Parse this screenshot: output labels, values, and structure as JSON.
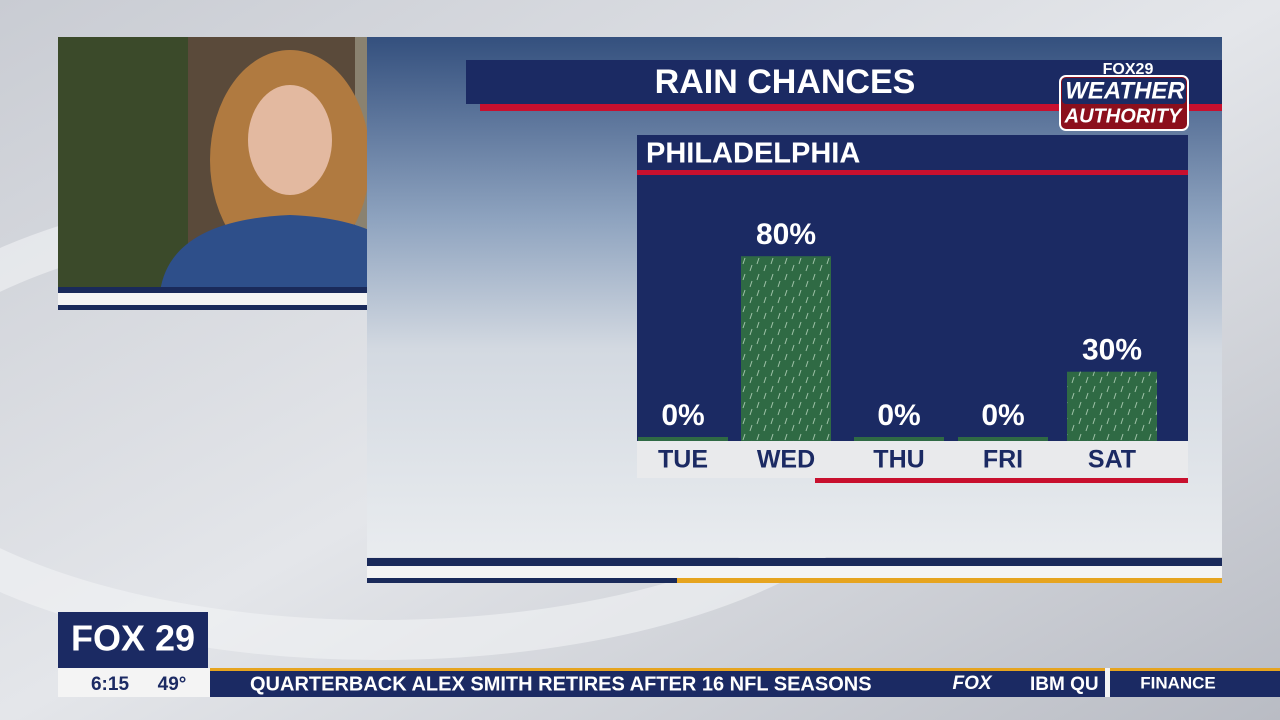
{
  "chart_data": {
    "type": "bar",
    "title": "RAIN CHANCES",
    "subtitle": "PHILADELPHIA",
    "categories": [
      "TUE",
      "WED",
      "THU",
      "FRI",
      "SAT"
    ],
    "values": [
      0,
      80,
      0,
      0,
      30
    ],
    "value_labels": [
      "0%",
      "80%",
      "0%",
      "0%",
      "30%"
    ],
    "color": "#2f6a44"
  },
  "branding": {
    "station": "FOX 29",
    "weather_top": "FOX29",
    "weather_line1": "WEATHER",
    "weather_line2": "AUTHORITY"
  },
  "status": {
    "time": "6:15",
    "temperature": "49°"
  },
  "ticker": {
    "headline": "QUARTERBACK ALEX SMITH RETIRES AFTER 16 NFL SEASONS",
    "logo": "FOX",
    "stock": "IBM QU",
    "section": "FINANCE"
  }
}
